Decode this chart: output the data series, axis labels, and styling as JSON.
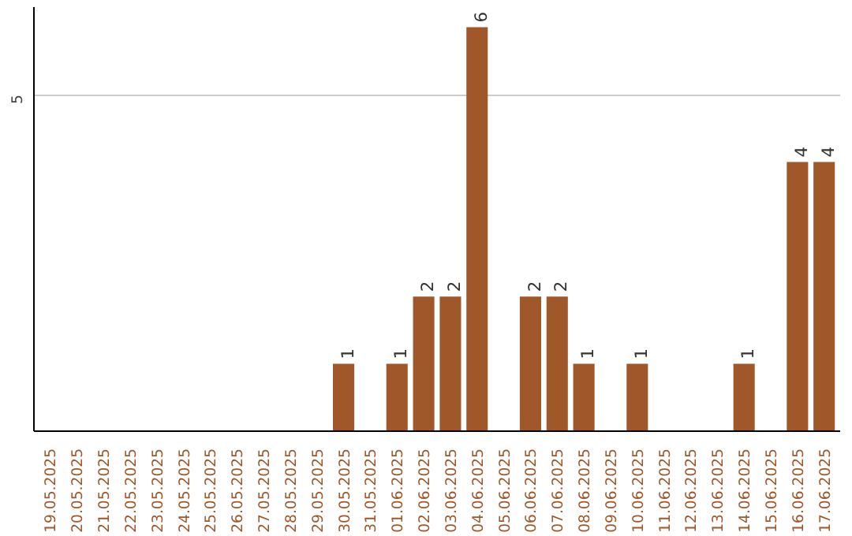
{
  "chart_data": {
    "type": "bar",
    "categories": [
      "19.05.2025",
      "20.05.2025",
      "21.05.2025",
      "22.05.2025",
      "23.05.2025",
      "24.05.2025",
      "25.05.2025",
      "26.05.2025",
      "27.05.2025",
      "28.05.2025",
      "29.05.2025",
      "30.05.2025",
      "31.05.2025",
      "01.06.2025",
      "02.06.2025",
      "03.06.2025",
      "04.06.2025",
      "05.06.2025",
      "06.06.2025",
      "07.06.2025",
      "08.06.2025",
      "09.06.2025",
      "10.06.2025",
      "11.06.2025",
      "12.06.2025",
      "13.06.2025",
      "14.06.2025",
      "15.06.2025",
      "16.06.2025",
      "17.06.2025"
    ],
    "values": [
      0,
      0,
      0,
      0,
      0,
      0,
      0,
      0,
      0,
      0,
      0,
      1,
      0,
      1,
      2,
      2,
      6,
      0,
      2,
      2,
      1,
      0,
      1,
      0,
      0,
      0,
      1,
      0,
      4,
      4
    ],
    "value_labels": [
      null,
      null,
      null,
      null,
      null,
      null,
      null,
      null,
      null,
      null,
      null,
      "1",
      null,
      "1",
      "2",
      "2",
      "6",
      null,
      "2",
      "2",
      "1",
      null,
      "1",
      null,
      null,
      null,
      "1",
      null,
      "4",
      "4"
    ],
    "color": "#a0572a",
    "ylim": [
      0,
      6.3
    ],
    "yticks": [
      5
    ],
    "grid": "y"
  }
}
